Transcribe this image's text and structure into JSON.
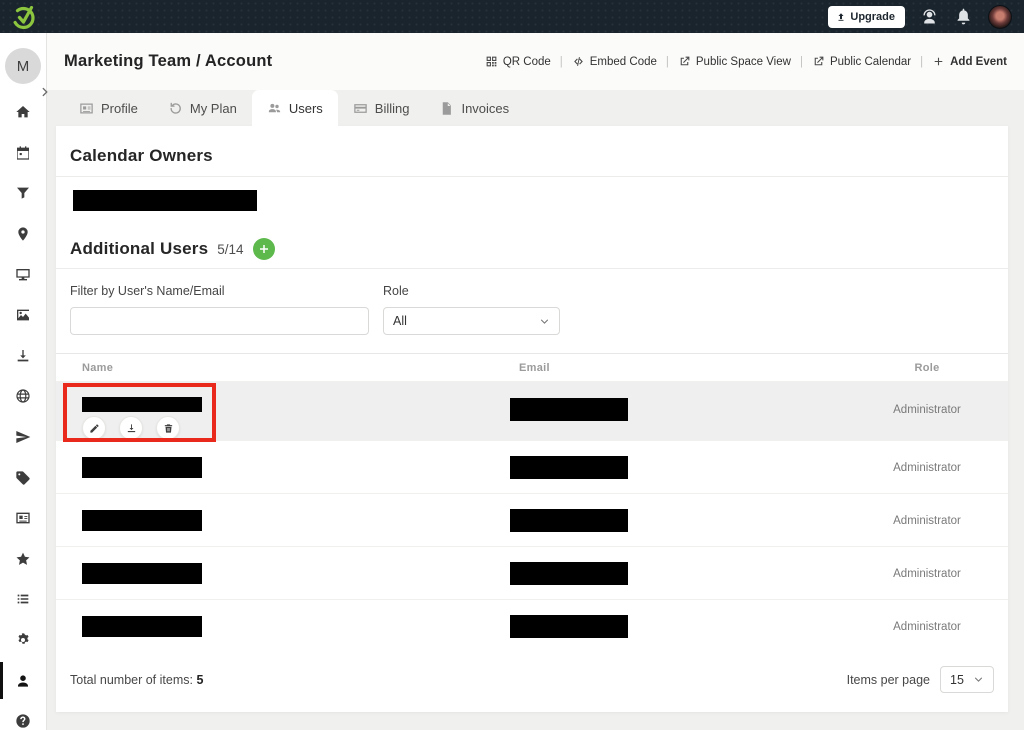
{
  "topbar": {
    "upgrade_label": "Upgrade",
    "icons": [
      "support-agent",
      "bell",
      "user-avatar"
    ]
  },
  "sidebar": {
    "avatar_initial": "M",
    "items": [
      {
        "icon": "home"
      },
      {
        "icon": "calendar"
      },
      {
        "icon": "filter"
      },
      {
        "icon": "location-pin"
      },
      {
        "icon": "monitor"
      },
      {
        "icon": "image"
      },
      {
        "icon": "download"
      },
      {
        "icon": "globe"
      },
      {
        "icon": "paper-plane"
      },
      {
        "icon": "tag"
      },
      {
        "icon": "id-card"
      },
      {
        "icon": "star"
      },
      {
        "icon": "list"
      },
      {
        "icon": "gears"
      },
      {
        "icon": "user",
        "active": true
      },
      {
        "icon": "question"
      }
    ]
  },
  "header": {
    "breadcrumb": "Marketing Team / Account",
    "links": [
      {
        "icon": "qr",
        "label": "QR Code"
      },
      {
        "icon": "code",
        "label": "Embed Code"
      },
      {
        "icon": "external",
        "label": "Public Space View"
      },
      {
        "icon": "external",
        "label": "Public Calendar"
      },
      {
        "icon": "plus",
        "label": "Add Event",
        "strong": true
      }
    ]
  },
  "tabs": [
    {
      "icon": "id-card",
      "label": "Profile"
    },
    {
      "icon": "history",
      "label": "My Plan"
    },
    {
      "icon": "users",
      "label": "Users",
      "active": true
    },
    {
      "icon": "credit-card",
      "label": "Billing"
    },
    {
      "icon": "invoice",
      "label": "Invoices"
    }
  ],
  "content": {
    "calendar_owners_title": "Calendar Owners",
    "additional_users_title": "Additional Users",
    "additional_users_count": "5/14",
    "filter_label": "Filter by User's Name/Email",
    "filter_value": "",
    "role_label": "Role",
    "role_value": "All",
    "table": {
      "columns": [
        "Name",
        "Email",
        "Role"
      ],
      "row_actions": [
        "pencil",
        "download",
        "trash"
      ],
      "rows": [
        {
          "name_redacted": true,
          "email_redacted": true,
          "role": "Administrator",
          "selected": true
        },
        {
          "name_redacted": true,
          "email_redacted": true,
          "role": "Administrator"
        },
        {
          "name_redacted": true,
          "email_redacted": true,
          "role": "Administrator"
        },
        {
          "name_redacted": true,
          "email_redacted": true,
          "role": "Administrator"
        },
        {
          "name_redacted": true,
          "email_redacted": true,
          "role": "Administrator"
        }
      ]
    },
    "footer": {
      "total_label": "Total number of items:",
      "total_value": "5",
      "per_page_label": "Items per page",
      "per_page_value": "15"
    }
  },
  "colors": {
    "brand_green": "#8cc63e",
    "plus_green": "#5db94c",
    "annotation_red": "#e8291c",
    "topbar_bg": "#1a242d"
  }
}
